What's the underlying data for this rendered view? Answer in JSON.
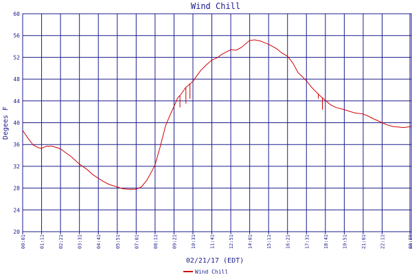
{
  "chart_data": {
    "type": "line",
    "title": "Wind Chill",
    "xlabel": "02/21/17 (EDT)",
    "ylabel": "Degees F",
    "ylim": [
      20,
      60
    ],
    "yticks": [
      20,
      24,
      28,
      32,
      36,
      40,
      44,
      48,
      52,
      56,
      60
    ],
    "xticks": [
      "00:01",
      "01:11",
      "02:21",
      "03:31",
      "04:41",
      "05:51",
      "07:01",
      "08:11",
      "09:21",
      "10:31",
      "11:41",
      "12:51",
      "14:01",
      "15:11",
      "16:21",
      "17:31",
      "18:41",
      "19:51",
      "21:01",
      "22:11",
      "00:00",
      "00:01"
    ],
    "grid": true,
    "legend": "bottom-left",
    "colors": {
      "line": "#cc0000",
      "grid": "#1a1a8c",
      "text": "#1a1a8c"
    },
    "series": [
      {
        "name": "Wind Chill",
        "x": [
          "00:01",
          "00:20",
          "00:40",
          "01:00",
          "01:11",
          "01:30",
          "01:50",
          "02:10",
          "02:21",
          "02:40",
          "03:00",
          "03:20",
          "03:31",
          "04:00",
          "04:20",
          "04:41",
          "05:00",
          "05:20",
          "05:51",
          "06:10",
          "06:30",
          "07:01",
          "07:20",
          "07:40",
          "08:00",
          "08:11",
          "08:30",
          "08:50",
          "09:10",
          "09:21",
          "09:35",
          "09:45",
          "09:55",
          "10:05",
          "10:15",
          "10:31",
          "10:45",
          "11:00",
          "11:20",
          "11:41",
          "12:00",
          "12:20",
          "12:51",
          "13:10",
          "13:30",
          "14:01",
          "14:20",
          "14:40",
          "15:11",
          "15:40",
          "16:00",
          "16:21",
          "16:40",
          "17:00",
          "17:31",
          "17:50",
          "18:10",
          "18:20",
          "18:41",
          "19:00",
          "19:20",
          "19:51",
          "20:10",
          "20:30",
          "21:01",
          "21:20",
          "21:40",
          "22:11",
          "22:30",
          "22:50",
          "23:10",
          "23:30",
          "23:58"
        ],
        "values": [
          38.6,
          37.2,
          35.9,
          35.4,
          35.3,
          35.7,
          35.7,
          35.4,
          35.2,
          34.5,
          33.8,
          32.9,
          32.4,
          31.4,
          30.5,
          29.8,
          29.2,
          28.7,
          28.2,
          27.9,
          27.8,
          27.8,
          28.2,
          29.4,
          31.2,
          32.3,
          35.6,
          39.5,
          41.8,
          43.0,
          44.6,
          45.1,
          45.8,
          46.5,
          46.9,
          47.6,
          48.6,
          49.6,
          50.6,
          51.5,
          51.9,
          52.6,
          53.4,
          53.3,
          53.8,
          55.1,
          55.2,
          55.0,
          54.4,
          53.6,
          52.8,
          52.2,
          51.0,
          49.2,
          47.7,
          46.5,
          45.5,
          45.0,
          44.1,
          43.3,
          42.8,
          42.4,
          42.1,
          41.8,
          41.6,
          41.2,
          40.7,
          40.0,
          39.6,
          39.3,
          39.2,
          39.1,
          39.3
        ],
        "dips": [
          {
            "x": "09:43",
            "value": 42.8
          },
          {
            "x": "10:05",
            "value": 43.5
          },
          {
            "x": "10:20",
            "value": 44.4
          },
          {
            "x": "18:15",
            "value": 44.4
          },
          {
            "x": "18:30",
            "value": 42.4
          }
        ]
      }
    ]
  }
}
